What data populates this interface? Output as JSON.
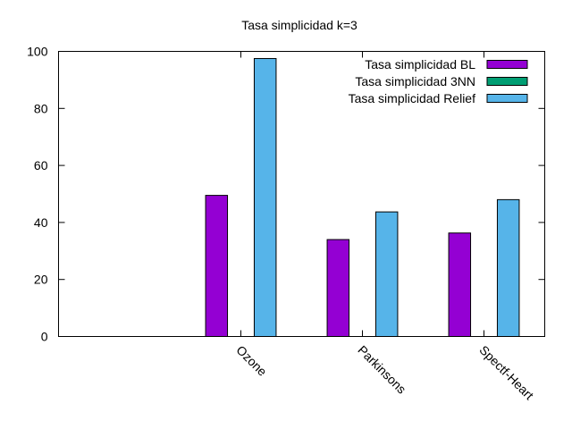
{
  "chart_data": {
    "type": "bar",
    "title": "Tasa simplicidad k=3",
    "categories": [
      "Ozone",
      "Parkinsons",
      "Spectf-Heart"
    ],
    "series": [
      {
        "name": "Tasa simplicidad BL",
        "color": "#9400d3",
        "values": [
          49.5,
          34.0,
          36.3
        ]
      },
      {
        "name": "Tasa simplicidad 3NN",
        "color": "#009e73",
        "values": [
          0,
          0,
          0
        ]
      },
      {
        "name": "Tasa simplicidad Relief",
        "color": "#56b4e9",
        "values": [
          97.5,
          43.7,
          48.0
        ]
      }
    ],
    "ylim": [
      0,
      100
    ],
    "yticks": [
      "0",
      "20",
      "40",
      "60",
      "80",
      "100"
    ],
    "legend_position": "top-right",
    "grid": false
  }
}
